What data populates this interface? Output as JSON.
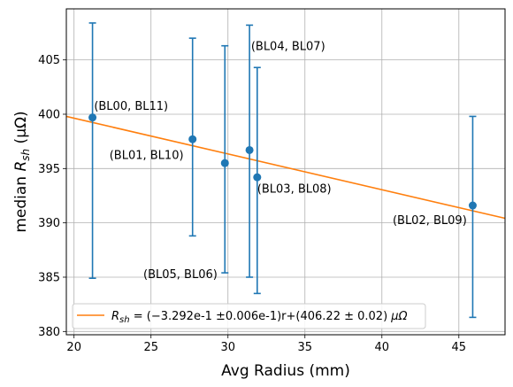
{
  "chart_data": {
    "type": "scatter",
    "xlabel": "Avg Radius (mm)",
    "ylabel": "median R_sh (μΩ)",
    "ylabel_parts": {
      "pre": "median ",
      "sym": "R",
      "sub": "sh",
      "post": " (μΩ)"
    },
    "xlim": [
      19.5,
      48.0
    ],
    "ylim": [
      379.7,
      409.7
    ],
    "xticks": [
      20,
      25,
      30,
      35,
      40,
      45
    ],
    "yticks": [
      380,
      385,
      390,
      395,
      400,
      405
    ],
    "grid": true,
    "colors": {
      "points": "#1f77b4",
      "fit": "#ff7f0e"
    },
    "points": [
      {
        "x": 21.2,
        "y": 399.7,
        "yerr_low": 384.9,
        "yerr_high": 408.4
      },
      {
        "x": 27.7,
        "y": 397.7,
        "yerr_low": 388.8,
        "yerr_high": 407.0
      },
      {
        "x": 29.8,
        "y": 395.5,
        "yerr_low": 385.4,
        "yerr_high": 406.3
      },
      {
        "x": 31.4,
        "y": 396.7,
        "yerr_low": 385.0,
        "yerr_high": 408.2
      },
      {
        "x": 31.9,
        "y": 394.2,
        "yerr_low": 383.5,
        "yerr_high": 404.3
      },
      {
        "x": 45.9,
        "y": 391.6,
        "yerr_low": 381.3,
        "yerr_high": 399.8
      }
    ],
    "annotations": [
      {
        "text": "(BL00, BL11)",
        "x": 21.3,
        "y": 400.4
      },
      {
        "text": "(BL01, BL10)",
        "x": 22.3,
        "y": 395.9
      },
      {
        "text": "(BL04, BL07)",
        "x": 31.5,
        "y": 405.9
      },
      {
        "text": "(BL03, BL08)",
        "x": 31.9,
        "y": 392.8
      },
      {
        "text": "(BL02, BL09)",
        "x": 40.7,
        "y": 389.9
      },
      {
        "text": "(BL05, BL06)",
        "x": 24.5,
        "y": 384.9
      }
    ],
    "fit": {
      "slope": -0.3292,
      "intercept": 406.22,
      "legend": {
        "sym": "R",
        "sub": "sh",
        "eq": " = (−3.292e-1 ±0.006e-1)r+(406.22 ± 0.02) ",
        "unit": "μΩ"
      }
    },
    "legend_position": "lower-left"
  }
}
